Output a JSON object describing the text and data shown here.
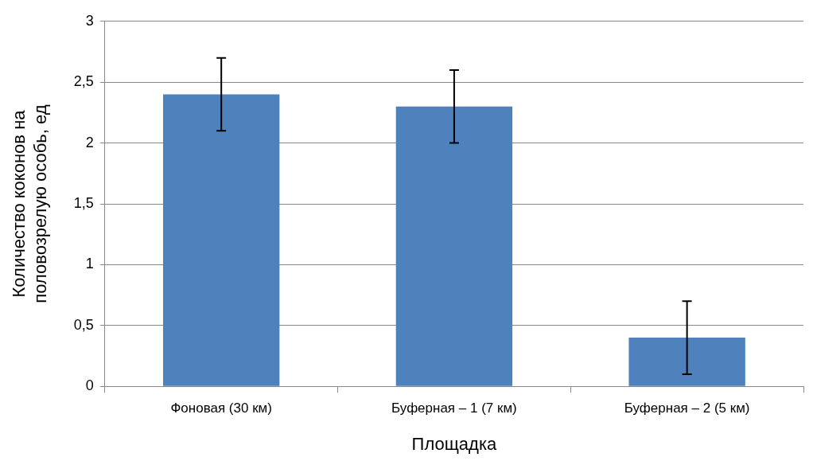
{
  "chart_data": {
    "type": "bar",
    "xlabel": "Площадка",
    "ylabel": "Количество коконов на половозрелую особь, ед",
    "categories": [
      "Фоновая (30 км)",
      "Буферная – 1 (7 км)",
      "Буферная – 2 (5 км)"
    ],
    "values": [
      2.4,
      2.3,
      0.4
    ],
    "errors": [
      0.3,
      0.3,
      0.3
    ],
    "color": "#4f81bd",
    "ylim": [
      0,
      3
    ],
    "yticks": [
      0,
      {
        "value": 0.5,
        "label": "0,5"
      },
      1,
      {
        "value": 1.5,
        "label": "1,5"
      },
      2,
      {
        "value": 2.5,
        "label": "2,5"
      },
      3
    ],
    "grid": "y",
    "legend": false
  }
}
